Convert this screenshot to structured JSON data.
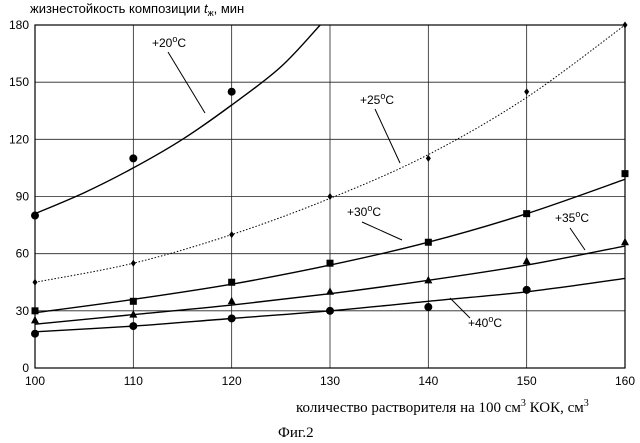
{
  "chart_data": {
    "type": "line",
    "title": "",
    "ylabel_prefix": "жизнестойкость композиции ",
    "ylabel_var": "t",
    "ylabel_sub": "ж",
    "ylabel_suffix": ", мин",
    "xlabel_pre": "количество растворителя на 100 см",
    "xlabel_sup": "3",
    "xlabel_mid": " КОК, см",
    "xlabel_sup2": "3",
    "caption": "Фиг.2",
    "xlim": [
      100,
      160
    ],
    "ylim": [
      0,
      180
    ],
    "xticks": [
      100,
      110,
      120,
      130,
      140,
      150,
      160
    ],
    "yticks": [
      0,
      30,
      60,
      90,
      120,
      150,
      180
    ],
    "grid": true,
    "series": [
      {
        "name_pre": "+20",
        "name_sup": "o",
        "name_post": "C",
        "marker": "circle",
        "line": "solid",
        "points": [
          [
            100,
            80
          ],
          [
            110,
            110
          ],
          [
            120,
            145
          ]
        ],
        "fit": [
          [
            100,
            81
          ],
          [
            105,
            92
          ],
          [
            110,
            105
          ],
          [
            115,
            120
          ],
          [
            120,
            138
          ],
          [
            125,
            158
          ],
          [
            129,
            180
          ]
        ]
      },
      {
        "name_pre": "+25",
        "name_sup": "o",
        "name_post": "C",
        "marker": "diamond",
        "line": "dotted",
        "points": [
          [
            100,
            45
          ],
          [
            110,
            55
          ],
          [
            120,
            70
          ],
          [
            130,
            90
          ],
          [
            140,
            110
          ],
          [
            150,
            145
          ],
          [
            160,
            180
          ]
        ],
        "fit": [
          [
            100,
            45
          ],
          [
            110,
            55
          ],
          [
            120,
            70
          ],
          [
            130,
            89
          ],
          [
            140,
            112
          ],
          [
            150,
            142
          ],
          [
            160,
            180
          ]
        ]
      },
      {
        "name_pre": "+30",
        "name_sup": "o",
        "name_post": "C",
        "marker": "square",
        "line": "solid",
        "points": [
          [
            100,
            30
          ],
          [
            110,
            35
          ],
          [
            120,
            45
          ],
          [
            130,
            55
          ],
          [
            140,
            66
          ],
          [
            150,
            81
          ],
          [
            160,
            102
          ]
        ],
        "fit": [
          [
            100,
            29
          ],
          [
            110,
            36
          ],
          [
            120,
            44
          ],
          [
            130,
            54
          ],
          [
            140,
            66
          ],
          [
            150,
            81
          ],
          [
            160,
            99
          ]
        ]
      },
      {
        "name_pre": "+35",
        "name_sup": "o",
        "name_post": "C",
        "marker": "triangle",
        "line": "solid",
        "points": [
          [
            100,
            25
          ],
          [
            110,
            28
          ],
          [
            120,
            35
          ],
          [
            130,
            40
          ],
          [
            140,
            46
          ],
          [
            150,
            56
          ],
          [
            160,
            66
          ]
        ],
        "fit": [
          [
            100,
            23
          ],
          [
            110,
            28
          ],
          [
            120,
            33
          ],
          [
            130,
            39
          ],
          [
            140,
            46
          ],
          [
            150,
            54
          ],
          [
            160,
            64
          ]
        ]
      },
      {
        "name_pre": "+40",
        "name_sup": "o",
        "name_post": "C",
        "marker": "circle",
        "line": "solid",
        "points": [
          [
            100,
            18
          ],
          [
            110,
            22
          ],
          [
            120,
            26
          ],
          [
            130,
            30
          ],
          [
            140,
            32
          ],
          [
            150,
            41
          ]
        ],
        "fit": [
          [
            100,
            19
          ],
          [
            110,
            22
          ],
          [
            120,
            26
          ],
          [
            130,
            30
          ],
          [
            140,
            35
          ],
          [
            150,
            40
          ],
          [
            160,
            47
          ]
        ]
      }
    ]
  }
}
